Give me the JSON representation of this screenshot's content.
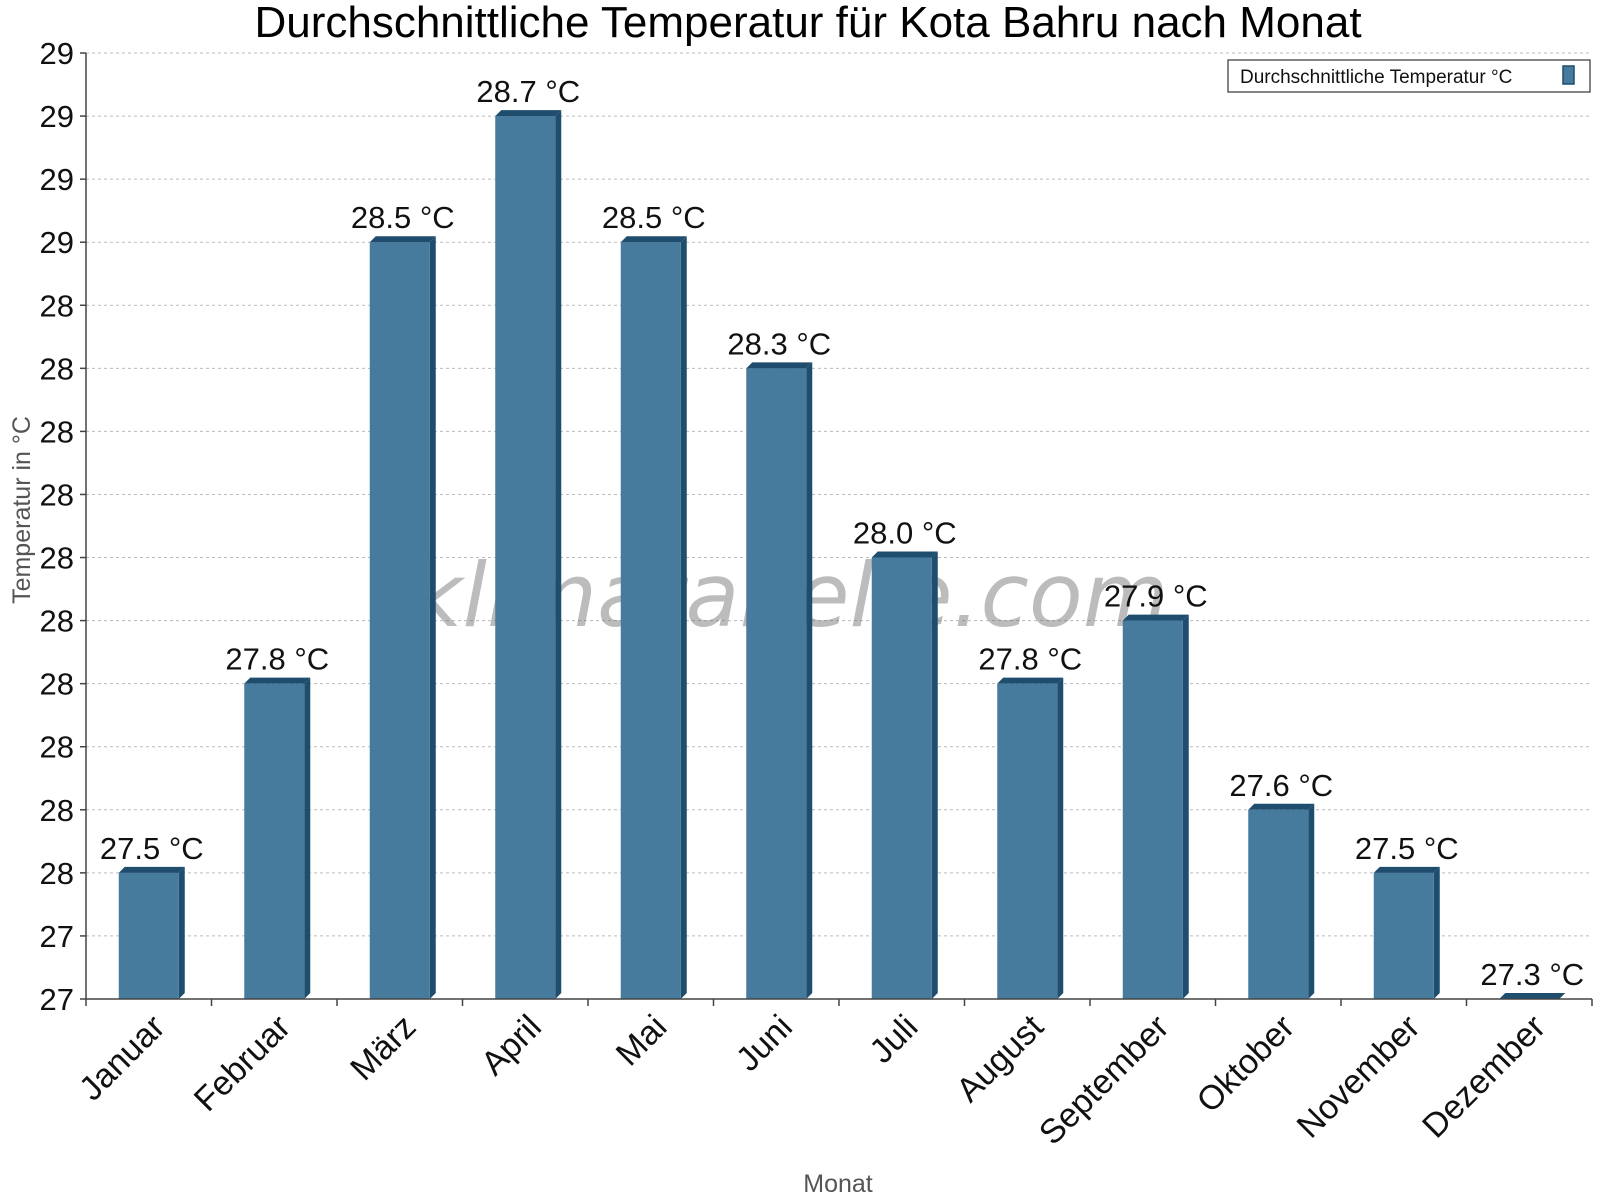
{
  "chart_data": {
    "type": "bar",
    "title": "Durchschnittliche Temperatur für Kota Bahru nach Monat",
    "xlabel": "Monat",
    "ylabel": "Temperatur in °C",
    "categories": [
      "Januar",
      "Februar",
      "März",
      "April",
      "Mai",
      "Juni",
      "Juli",
      "August",
      "September",
      "Oktober",
      "November",
      "Dezember"
    ],
    "series": [
      {
        "name": "Durchschnittliche Temperatur °C",
        "values": [
          27.5,
          27.8,
          28.5,
          28.7,
          28.5,
          28.3,
          28.0,
          27.8,
          27.9,
          27.6,
          27.5,
          27.3
        ],
        "labels": [
          "27.5 °C",
          "27.8 °C",
          "28.5 °C",
          "28.7 °C",
          "28.5 °C",
          "28.3 °C",
          "28.0 °C",
          "27.8 °C",
          "27.9 °C",
          "27.6 °C",
          "27.5 °C",
          "27.3 °C"
        ]
      }
    ],
    "ylim": [
      27.3,
      28.8
    ],
    "yticks": [
      27.3,
      27.4,
      27.5,
      27.6,
      27.7,
      27.8,
      27.9,
      28.0,
      28.1,
      28.2,
      28.3,
      28.4,
      28.5,
      28.6,
      28.7,
      28.8
    ],
    "ytick_labels": [
      "27",
      "27",
      "28",
      "28",
      "28",
      "28",
      "28",
      "28",
      "28",
      "28",
      "28",
      "28",
      "29",
      "29",
      "29",
      "29"
    ],
    "grid": true,
    "legend_position": "top-right",
    "bar_color": "#467b9d",
    "bar_edge_color": "#1e4d6e"
  },
  "watermark": "klimatabelle.com"
}
